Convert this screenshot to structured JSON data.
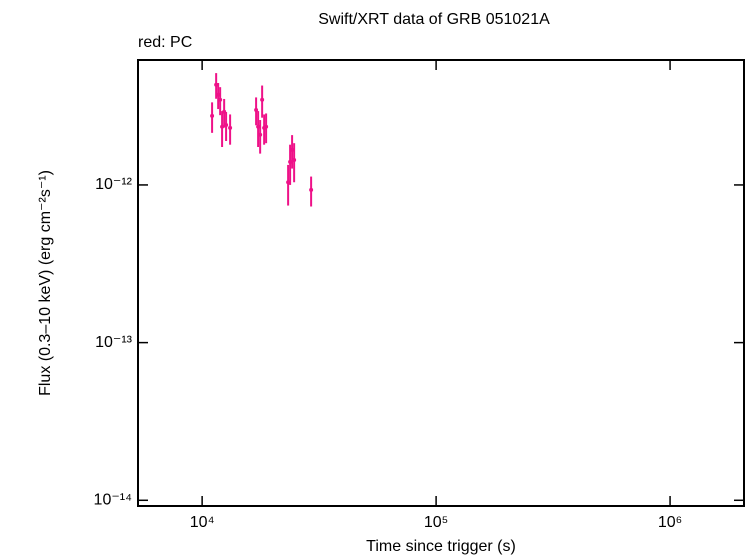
{
  "chart_data": {
    "type": "scatter",
    "title": "Swift/XRT data of GRB 051021A",
    "subtitle": "red: PC",
    "x_label": "Time since trigger (s)",
    "y_label": "Flux (0.3–10 keV) (erg cm⁻²s⁻¹)",
    "x_log": true,
    "y_log": true,
    "xlim": [
      5320,
      2070000
    ],
    "ylim": [
      9.2e-15,
      6.2e-12
    ],
    "xticks": [
      {
        "value": 10000,
        "label": "10⁴"
      },
      {
        "value": 100000,
        "label": "10⁵"
      },
      {
        "value": 1000000,
        "label": "10⁶"
      }
    ],
    "yticks": [
      {
        "value": 1e-14,
        "label": "10⁻¹⁴"
      },
      {
        "value": 1e-13,
        "label": "10⁻¹³"
      },
      {
        "value": 1e-12,
        "label": "10⁻¹²"
      }
    ],
    "series": [
      {
        "name": "PC",
        "color": "#ee1188",
        "x": [
          11030,
          11480,
          11710,
          11940,
          12170,
          12420,
          12660,
          13170,
          17010,
          17350,
          17700,
          18050,
          18410,
          18770,
          23310,
          23770,
          24240,
          24730,
          29230
        ],
        "values": [
          2.74e-12,
          4.32e-12,
          3.73e-12,
          3.47e-12,
          2.34e-12,
          2.91e-12,
          2.4e-12,
          2.3e-12,
          2.99e-12,
          2.34e-12,
          2.08e-12,
          3.47e-12,
          2.3e-12,
          2.34e-12,
          1.04e-12,
          1.4e-12,
          1.67e-12,
          1.44e-12,
          9.3e-13
        ],
        "errors": [
          6e-13,
          8e-13,
          7e-13,
          7e-13,
          6e-13,
          6e-13,
          5e-13,
          5e-13,
          6e-13,
          6e-13,
          5e-13,
          8e-13,
          5e-13,
          5e-13,
          3e-13,
          4e-13,
          4e-13,
          4e-13,
          2e-13
        ]
      }
    ]
  }
}
